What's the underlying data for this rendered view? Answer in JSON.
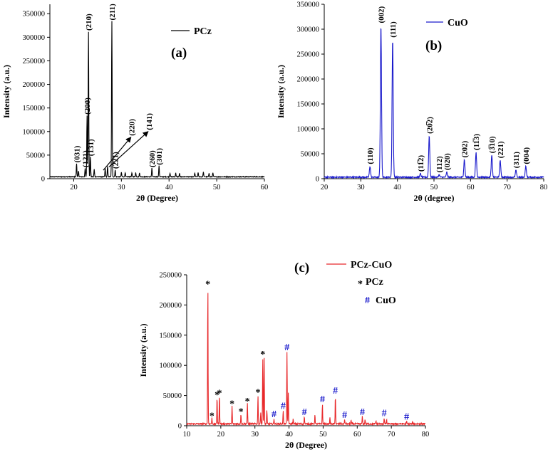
{
  "chart_data": [
    {
      "type": "line",
      "panel": "(a)",
      "series": [
        {
          "name": "PCz",
          "color": "#000000"
        }
      ],
      "xlabel": "2θ (Degree)",
      "ylabel": "Intensity (a.u.)",
      "xlim": [
        15,
        60
      ],
      "ylim": [
        0,
        370000
      ],
      "xticks": [
        "20",
        "30",
        "40",
        "50",
        "60"
      ],
      "yticks": [
        "0",
        "50000",
        "100000",
        "150000",
        "200000",
        "250000",
        "300000",
        "350000"
      ],
      "peaks": [
        {
          "x": 20.6,
          "y": 28000,
          "label": "(031)"
        },
        {
          "x": 21.0,
          "y": 12000
        },
        {
          "x": 22.4,
          "y": 18000,
          "label": "(121)"
        },
        {
          "x": 22.8,
          "y": 130000,
          "label": "(200)"
        },
        {
          "x": 23.1,
          "y": 308000,
          "label": "(210)"
        },
        {
          "x": 23.5,
          "y": 42000,
          "label": "(131)"
        },
        {
          "x": 24.3,
          "y": 16000
        },
        {
          "x": 26.6,
          "y": 18000
        },
        {
          "x": 27.1,
          "y": 22000
        },
        {
          "x": 28.0,
          "y": 330000,
          "label": "(211)"
        },
        {
          "x": 28.7,
          "y": 15000,
          "label": "(221)"
        },
        {
          "x": 30.0,
          "y": 9000
        },
        {
          "x": 30.8,
          "y": 9000
        },
        {
          "x": 32.2,
          "y": 8000
        },
        {
          "x": 33.0,
          "y": 9000
        },
        {
          "x": 33.8,
          "y": 8000
        },
        {
          "x": 36.4,
          "y": 18000,
          "label": "(260)"
        },
        {
          "x": 37.9,
          "y": 23000,
          "label": "(301)"
        },
        {
          "x": 40.2,
          "y": 8000
        },
        {
          "x": 41.4,
          "y": 8000
        },
        {
          "x": 42.2,
          "y": 7000
        },
        {
          "x": 45.4,
          "y": 8000
        },
        {
          "x": 46.1,
          "y": 9000
        },
        {
          "x": 47.2,
          "y": 10000
        },
        {
          "x": 48.4,
          "y": 8000
        },
        {
          "x": 49.2,
          "y": 9000
        }
      ],
      "annotations": [
        {
          "label": "(220)",
          "arrow_from": [
            26.2,
            18000
          ],
          "arrow_to": [
            32.0,
            88000
          ]
        },
        {
          "label": "(141)",
          "arrow_from": [
            27.4,
            25000
          ],
          "arrow_to": [
            35.6,
            100000
          ]
        }
      ]
    },
    {
      "type": "line",
      "panel": "(b)",
      "series": [
        {
          "name": "CuO",
          "color": "#1a1acc"
        }
      ],
      "xlabel": "2θ (degree)",
      "ylabel": "Intensity (a.u.)",
      "xlim": [
        20,
        80
      ],
      "ylim": [
        0,
        350000
      ],
      "xticks": [
        "20",
        "30",
        "40",
        "50",
        "60",
        "70",
        "80"
      ],
      "yticks": [
        "0",
        "50000",
        "100000",
        "150000",
        "200000",
        "250000",
        "300000",
        "350000"
      ],
      "peaks": [
        {
          "x": 32.5,
          "y": 22000,
          "label": "(110)"
        },
        {
          "x": 35.5,
          "y": 305000,
          "label": "(002)"
        },
        {
          "x": 38.7,
          "y": 276000,
          "label": "(111)"
        },
        {
          "x": 46.3,
          "y": 7000,
          "label": "(11̅2)"
        },
        {
          "x": 48.7,
          "y": 83000,
          "label": "(20̅2)"
        },
        {
          "x": 51.4,
          "y": 5000,
          "label": "(112)"
        },
        {
          "x": 53.5,
          "y": 10000,
          "label": "(020)"
        },
        {
          "x": 58.3,
          "y": 35000,
          "label": "(202)"
        },
        {
          "x": 61.5,
          "y": 50000,
          "label": "(11̅3)"
        },
        {
          "x": 65.8,
          "y": 44000,
          "label": "(3̅10)"
        },
        {
          "x": 68.1,
          "y": 34000,
          "label": "(221)"
        },
        {
          "x": 72.4,
          "y": 14000,
          "label": "(311)"
        },
        {
          "x": 75.1,
          "y": 22000,
          "label": "(004)"
        }
      ]
    },
    {
      "type": "line",
      "panel": "(c)",
      "series": [
        {
          "name": "PCz-CuO",
          "color": "#e8282a"
        }
      ],
      "legend_markers": [
        {
          "symbol": "*",
          "label": "PCz"
        },
        {
          "symbol": "#",
          "label": "CuO"
        }
      ],
      "xlabel": "2θ (Degree)",
      "ylabel": "Intensity (a.u.)",
      "xlim": [
        10,
        80
      ],
      "ylim": [
        0,
        250000
      ],
      "xticks": [
        "10",
        "20",
        "30",
        "40",
        "50",
        "60",
        "70",
        "80"
      ],
      "yticks": [
        "0",
        "50000",
        "100000",
        "150000",
        "200000",
        "250000"
      ],
      "peaks": [
        {
          "x": 16.2,
          "y": 228000,
          "marker": "*"
        },
        {
          "x": 17.4,
          "y": 10000,
          "marker": "*"
        },
        {
          "x": 18.9,
          "y": 45000,
          "marker": "*"
        },
        {
          "x": 19.6,
          "y": 48000,
          "marker": "*"
        },
        {
          "x": 23.3,
          "y": 30000,
          "marker": "*"
        },
        {
          "x": 25.9,
          "y": 17000,
          "marker": "*"
        },
        {
          "x": 27.8,
          "y": 34000,
          "marker": "*"
        },
        {
          "x": 30.9,
          "y": 49000,
          "marker": "*"
        },
        {
          "x": 31.7,
          "y": 20000
        },
        {
          "x": 32.3,
          "y": 112000,
          "marker": "*"
        },
        {
          "x": 32.7,
          "y": 110000
        },
        {
          "x": 33.5,
          "y": 22000
        },
        {
          "x": 35.6,
          "y": 8000,
          "marker": "#"
        },
        {
          "x": 38.3,
          "y": 22000,
          "marker": "#"
        },
        {
          "x": 39.4,
          "y": 119000,
          "marker": "#"
        },
        {
          "x": 39.8,
          "y": 52000
        },
        {
          "x": 41.2,
          "y": 8000
        },
        {
          "x": 44.5,
          "y": 12000,
          "marker": "#"
        },
        {
          "x": 47.6,
          "y": 15000
        },
        {
          "x": 49.8,
          "y": 33000,
          "marker": "#"
        },
        {
          "x": 52.0,
          "y": 10000
        },
        {
          "x": 53.6,
          "y": 47000,
          "marker": "#"
        },
        {
          "x": 56.3,
          "y": 7000,
          "marker": "#"
        },
        {
          "x": 58.2,
          "y": 6000
        },
        {
          "x": 61.5,
          "y": 12000,
          "marker": "#"
        },
        {
          "x": 62.3,
          "y": 8000
        },
        {
          "x": 65.5,
          "y": 5000
        },
        {
          "x": 67.9,
          "y": 10000,
          "marker": "#"
        },
        {
          "x": 68.6,
          "y": 7000
        },
        {
          "x": 74.5,
          "y": 4000,
          "marker": "#"
        },
        {
          "x": 76.2,
          "y": 3000
        }
      ]
    }
  ]
}
